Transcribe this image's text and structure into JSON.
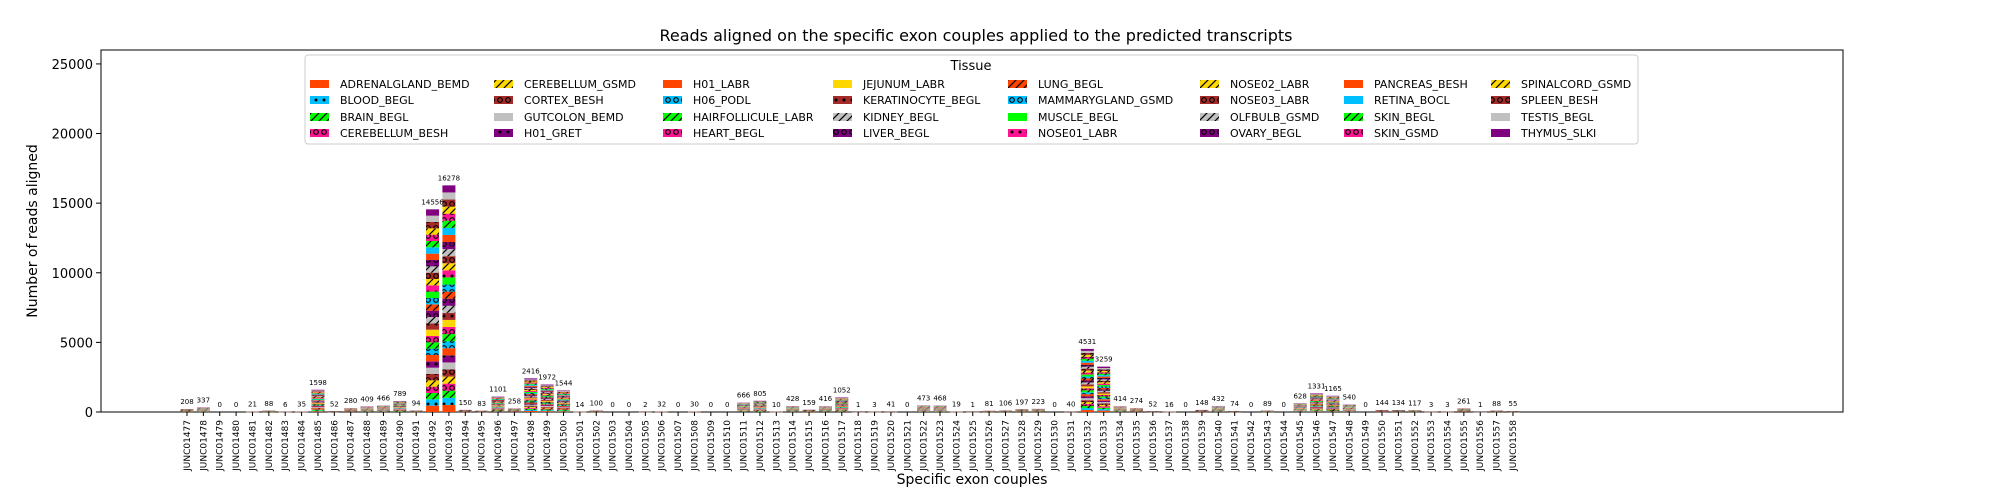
{
  "chart_data": {
    "type": "bar",
    "stacked": true,
    "title": "Reads aligned on the specific exon couples applied to the predicted transcripts",
    "xlabel": "Specific exon couples",
    "ylabel": "Number of reads aligned",
    "ylim": [
      0,
      26000
    ],
    "yticks": [
      0,
      5000,
      10000,
      15000,
      20000,
      25000
    ],
    "ytick_labels": [
      "0",
      "5000",
      "10000",
      "15000",
      "20000",
      "25000"
    ],
    "grid": false,
    "legend_title": "Tissue",
    "legend_placement": "top-center",
    "categories": [
      "JUNC01477",
      "JUNC01478",
      "JUNC01479",
      "JUNC01480",
      "JUNC01481",
      "JUNC01482",
      "JUNC01483",
      "JUNC01484",
      "JUNC01485",
      "JUNC01486",
      "JUNC01487",
      "JUNC01488",
      "JUNC01489",
      "JUNC01490",
      "JUNC01491",
      "JUNC01492",
      "JUNC01493",
      "JUNC01494",
      "JUNC01495",
      "JUNC01496",
      "JUNC01497",
      "JUNC01498",
      "JUNC01499",
      "JUNC01500",
      "JUNC01501",
      "JUNC01502",
      "JUNC01503",
      "JUNC01504",
      "JUNC01505",
      "JUNC01506",
      "JUNC01507",
      "JUNC01508",
      "JUNC01509",
      "JUNC01510",
      "JUNC01511",
      "JUNC01512",
      "JUNC01513",
      "JUNC01514",
      "JUNC01515",
      "JUNC01516",
      "JUNC01517",
      "JUNC01518",
      "JUNC01519",
      "JUNC01520",
      "JUNC01521",
      "JUNC01522",
      "JUNC01523",
      "JUNC01524",
      "JUNC01525",
      "JUNC01526",
      "JUNC01527",
      "JUNC01528",
      "JUNC01529",
      "JUNC01530",
      "JUNC01531",
      "JUNC01532",
      "JUNC01533",
      "JUNC01534",
      "JUNC01535",
      "JUNC01536",
      "JUNC01537",
      "JUNC01538",
      "JUNC01539",
      "JUNC01540",
      "JUNC01541",
      "JUNC01542",
      "JUNC01543",
      "JUNC01544",
      "JUNC01545",
      "JUNC01546",
      "JUNC01547",
      "JUNC01548",
      "JUNC01549",
      "JUNC01550",
      "JUNC01551",
      "JUNC01552",
      "JUNC01553",
      "JUNC01554",
      "JUNC01555",
      "JUNC01556",
      "JUNC01557",
      "JUNC01558"
    ],
    "totals": [
      208,
      337,
      0,
      0,
      21,
      88,
      6,
      35,
      1598,
      52,
      280,
      409,
      466,
      789,
      94,
      14556,
      16278,
      150,
      83,
      1101,
      258,
      2416,
      1972,
      1544,
      14,
      100,
      0,
      0,
      2,
      32,
      0,
      30,
      0,
      0,
      666,
      805,
      10,
      428,
      159,
      416,
      1052,
      1,
      3,
      41,
      0,
      473,
      468,
      19,
      1,
      81,
      106,
      197,
      223,
      0,
      40,
      4531,
      3259,
      414,
      274,
      52,
      16,
      0,
      148,
      432,
      74,
      0,
      89,
      0,
      628,
      1331,
      1165,
      540,
      0,
      144,
      134,
      117,
      3,
      3,
      261,
      1,
      88,
      55
    ],
    "series": [
      {
        "name": "ADRENALGLAND_BEMD",
        "color": "#ff4500",
        "pattern": "none"
      },
      {
        "name": "BLOOD_BEGL",
        "color": "#00bfff",
        "pattern": "dot"
      },
      {
        "name": "BRAIN_BEGL",
        "color": "#00ff00",
        "pattern": "slash"
      },
      {
        "name": "CEREBELLUM_BESH",
        "color": "#ff1493",
        "pattern": "ring"
      },
      {
        "name": "CEREBELLUM_GSMD",
        "color": "#ffd700",
        "pattern": "slash"
      },
      {
        "name": "CORTEX_BESH",
        "color": "#a52a2a",
        "pattern": "ring"
      },
      {
        "name": "GUTCOLON_BEMD",
        "color": "#c0c0c0",
        "pattern": "none"
      },
      {
        "name": "H01_GRET",
        "color": "#800080",
        "pattern": "dot"
      },
      {
        "name": "H01_LABR",
        "color": "#ff4500",
        "pattern": "none"
      },
      {
        "name": "H06_PODL",
        "color": "#00bfff",
        "pattern": "ring"
      },
      {
        "name": "HAIRFOLLICULE_LABR",
        "color": "#00ff00",
        "pattern": "slash"
      },
      {
        "name": "HEART_BEGL",
        "color": "#ff1493",
        "pattern": "ring"
      },
      {
        "name": "JEJUNUM_LABR",
        "color": "#ffd700",
        "pattern": "none"
      },
      {
        "name": "KERATINOCYTE_BEGL",
        "color": "#a52a2a",
        "pattern": "dot"
      },
      {
        "name": "KIDNEY_BEGL",
        "color": "#c0c0c0",
        "pattern": "slash"
      },
      {
        "name": "LIVER_BEGL",
        "color": "#800080",
        "pattern": "ring"
      },
      {
        "name": "LUNG_BEGL",
        "color": "#ff4500",
        "pattern": "slash"
      },
      {
        "name": "MAMMARYGLAND_GSMD",
        "color": "#00bfff",
        "pattern": "ring"
      },
      {
        "name": "MUSCLE_BEGL",
        "color": "#00ff00",
        "pattern": "none"
      },
      {
        "name": "NOSE01_LABR",
        "color": "#ff1493",
        "pattern": "dot"
      },
      {
        "name": "NOSE02_LABR",
        "color": "#ffd700",
        "pattern": "slash"
      },
      {
        "name": "NOSE03_LABR",
        "color": "#a52a2a",
        "pattern": "ring"
      },
      {
        "name": "OLFBULB_GSMD",
        "color": "#c0c0c0",
        "pattern": "slash"
      },
      {
        "name": "OVARY_BEGL",
        "color": "#800080",
        "pattern": "ring"
      },
      {
        "name": "PANCREAS_BESH",
        "color": "#ff4500",
        "pattern": "none"
      },
      {
        "name": "RETINA_BOCL",
        "color": "#00bfff",
        "pattern": "none"
      },
      {
        "name": "SKIN_BEGL",
        "color": "#00ff00",
        "pattern": "slash"
      },
      {
        "name": "SKIN_GSMD",
        "color": "#ff1493",
        "pattern": "ring"
      },
      {
        "name": "SPINALCORD_GSMD",
        "color": "#ffd700",
        "pattern": "slash"
      },
      {
        "name": "SPLEEN_BESH",
        "color": "#a52a2a",
        "pattern": "ring"
      },
      {
        "name": "TESTIS_BEGL",
        "color": "#c0c0c0",
        "pattern": "none"
      },
      {
        "name": "THYMUS_SLKI",
        "color": "#800080",
        "pattern": "none"
      }
    ]
  }
}
